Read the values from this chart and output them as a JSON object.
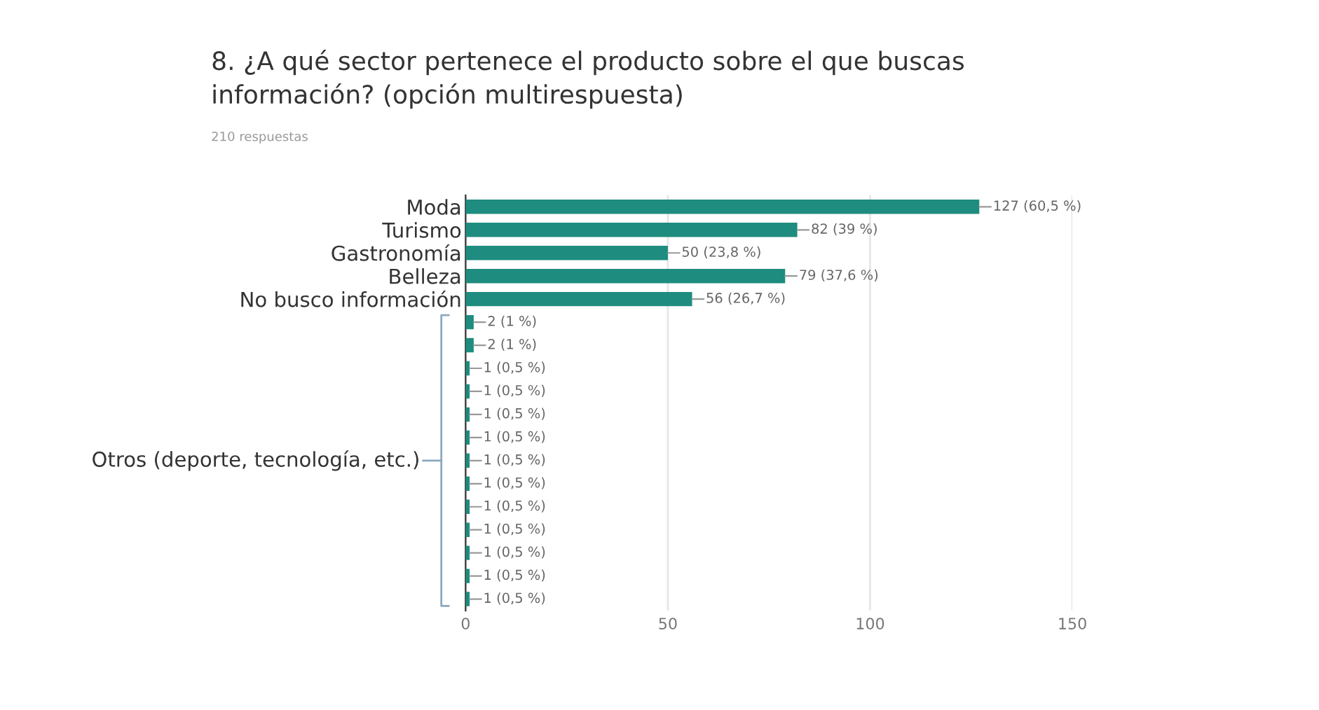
{
  "chart_data": {
    "type": "bar",
    "orientation": "horizontal",
    "title": "8. ¿A qué sector pertenece el producto sobre el que buscas\ninformación? (opción multirespuesta)",
    "subtitle": "210 respuestas",
    "categories": [
      "Moda",
      "Turismo",
      "Gastronomía",
      "Belleza",
      "No busco información",
      null,
      null,
      null,
      null,
      null,
      null,
      null,
      null,
      null,
      null,
      null,
      null,
      null
    ],
    "values": [
      127,
      82,
      50,
      79,
      56,
      2,
      2,
      1,
      1,
      1,
      1,
      1,
      1,
      1,
      1,
      1,
      1,
      1
    ],
    "value_labels": [
      "127 (60,5 %)",
      "82 (39 %)",
      "50 (23,8 %)",
      "79 (37,6 %)",
      "56 (26,7 %)",
      "2 (1 %)",
      "2 (1 %)",
      "1 (0,5 %)",
      "1 (0,5 %)",
      "1 (0,5 %)",
      "1 (0,5 %)",
      "1 (0,5 %)",
      "1 (0,5 %)",
      "1 (0,5 %)",
      "1 (0,5 %)",
      "1 (0,5 %)",
      "1 (0,5 %)",
      "1 (0,5 %)"
    ],
    "color": "#1e8c7e",
    "annotations": [
      "Otros (deporte, tecnología, etc.)"
    ],
    "xlim": [
      0,
      150
    ],
    "xticks": [
      0,
      50,
      100,
      150
    ],
    "grid": "x"
  }
}
